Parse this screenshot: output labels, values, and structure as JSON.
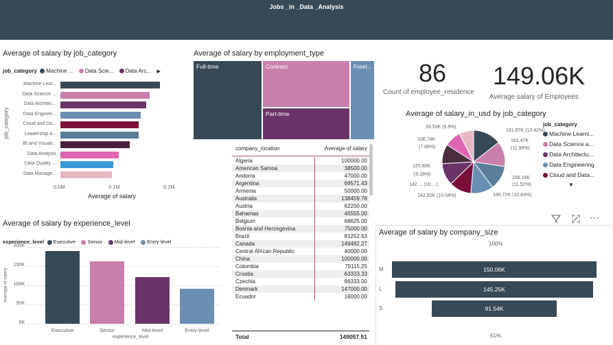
{
  "header": {
    "title": "Jobs _in _Data _Analysis"
  },
  "job_category_chart": {
    "title": "Average of salary by job_category",
    "legend_title": "job_category",
    "legend_items": [
      {
        "label": "Machine ...",
        "color": "#374956"
      },
      {
        "label": "Data Scie...",
        "color": "#c97fab"
      },
      {
        "label": "Data Arc...",
        "color": "#6b3468"
      }
    ],
    "legend_more": "▶",
    "y_axis_title": "job_category",
    "x_axis_title": "Average of salary",
    "x_ticks": [
      "0.0M",
      "0.1M",
      "0.2M"
    ]
  },
  "employment_chart": {
    "title": "Average of salary by employment_type",
    "tiles": [
      "Full-time",
      "Contract",
      "Part-time",
      "Freel..."
    ]
  },
  "table": {
    "col1": "company_location",
    "col2": "Average of salary",
    "rows": [
      [
        "Algeria",
        "100000.00"
      ],
      [
        "American Samoa",
        "38500.00"
      ],
      [
        "Andorra",
        "47000.00"
      ],
      [
        "Argentina",
        "69571.43"
      ],
      [
        "Armenia",
        "50000.00"
      ],
      [
        "Australia",
        "138459.78"
      ],
      [
        "Austria",
        "62200.00"
      ],
      [
        "Bahamas",
        "45555.00"
      ],
      [
        "Belgium",
        "68625.00"
      ],
      [
        "Bosnia and Herzegovina",
        "75000.00"
      ],
      [
        "Brazil",
        "81252.63"
      ],
      [
        "Canada",
        "149482.27"
      ],
      [
        "Central African Republic",
        "40000.00"
      ],
      [
        "China",
        "100000.00"
      ],
      [
        "Colombia",
        "79115.25"
      ],
      [
        "Croatia",
        "63333.33"
      ],
      [
        "Czechia",
        "66333.00"
      ],
      [
        "Denmark",
        "147000.00"
      ],
      [
        "Ecuador",
        "16000.00"
      ]
    ],
    "total_label": "Total",
    "total_value": "149057.51"
  },
  "cards": {
    "count_value": "86",
    "count_label": "Count of employee_residence",
    "avg_value": "149.06K",
    "avg_label": "Average salary of Employees"
  },
  "pie_chart": {
    "title": "Average of salary_in_usd by job_category",
    "legend_title": "job_category",
    "legend_items": [
      {
        "label": "Machine Learni...",
        "color": "#374956"
      },
      {
        "label": "Data Science a...",
        "color": "#c97fab"
      },
      {
        "label": "Data Architectu...",
        "color": "#6b3468"
      },
      {
        "label": "Data Engineering",
        "color": "#6a8fb3"
      },
      {
        "label": "Cloud and Data...",
        "color": "#7a0f3a"
      }
    ],
    "legend_more": "▼",
    "labels": [
      "93.53K (6.9%)",
      "181.87K (13.42%)",
      "106.74K",
      "(7.88%)",
      "162.47K",
      "(11.99%)",
      "125.80K",
      "(9.28%)",
      "156.16K",
      "(11.52%)",
      "142.... (10....)",
      "142.82K (10.54%)",
      "146.72K (10.83%)"
    ]
  },
  "chart_data": [
    {
      "type": "bar",
      "orientation": "horizontal",
      "title": "Average of salary by job_category",
      "xlabel": "Average of salary",
      "ylabel": "job_category",
      "categories": [
        "Machine Lear...",
        "Data Science ...",
        "Data Architec...",
        "Data Enginee...",
        "Cloud and Da...",
        "Leadership a...",
        "BI and Visuali...",
        "Data Analysis",
        "Data Quality ...",
        "Data Manage..."
      ],
      "values": [
        181870,
        162470,
        156160,
        146720,
        142820,
        142000,
        125800,
        106740,
        96000,
        93530
      ],
      "colors": [
        "#374956",
        "#c97fab",
        "#6b3468",
        "#6a8fb3",
        "#7a0f3a",
        "#5a7d99",
        "#4a1f3c",
        "#e065b0",
        "#3a9ad9",
        "#e6b8c2"
      ],
      "xlim": [
        0,
        200000
      ]
    },
    {
      "type": "bar",
      "title": "Average of salary by experience_level",
      "xlabel": "experience_level",
      "ylabel": "Average of salary",
      "legend_title": "experience_level",
      "categories": [
        "Executive",
        "Senior",
        "Mid-level",
        "Entry-level"
      ],
      "values": [
        190000,
        163000,
        122000,
        91000
      ],
      "colors": [
        "#374956",
        "#c97fab",
        "#6b3468",
        "#6a8fb3"
      ],
      "ylim": [
        0,
        200000
      ],
      "y_ticks": [
        "0K",
        "50K",
        "100K",
        "150K",
        "200K"
      ]
    },
    {
      "type": "pie",
      "title": "Average of salary_in_usd by job_category",
      "labels": [
        "Machine Learning",
        "Data Science a...",
        "Data Engineering",
        "Cloud and Data",
        "BI and Visualization",
        "Data Architecture",
        "Data Analysis",
        "Data Quality",
        "Data Management"
      ],
      "values": [
        181.87,
        162.47,
        156.16,
        146.72,
        142.82,
        142.0,
        125.8,
        106.74,
        93.53
      ],
      "colors": [
        "#374956",
        "#c97fab",
        "#5a7d99",
        "#6a8fb3",
        "#7a0f3a",
        "#6b3468",
        "#4a2e3e",
        "#e065b0",
        "#e6b8c2"
      ]
    },
    {
      "type": "bar",
      "orientation": "funnel",
      "title": "Average of salary by company_size",
      "categories": [
        "M",
        "L",
        "S"
      ],
      "values": [
        150060,
        145250,
        91540
      ],
      "value_labels": [
        "150.06K",
        "145.25K",
        "91.54K"
      ],
      "top_label": "100%",
      "bottom_label": "61%"
    }
  ],
  "exp_chart": {
    "title": "Average of salary by experience_level",
    "legend_title": "experience_level",
    "y_axis_title": "Average of salary",
    "x_axis_title": "experience_level"
  },
  "funnel_chart": {
    "title": "Average of salary by company_size"
  },
  "visual_header": {
    "filter_icon": "filter-icon",
    "focus_icon": "focus-mode-icon",
    "more_icon": "more-options-icon",
    "more_text": "⋯"
  }
}
